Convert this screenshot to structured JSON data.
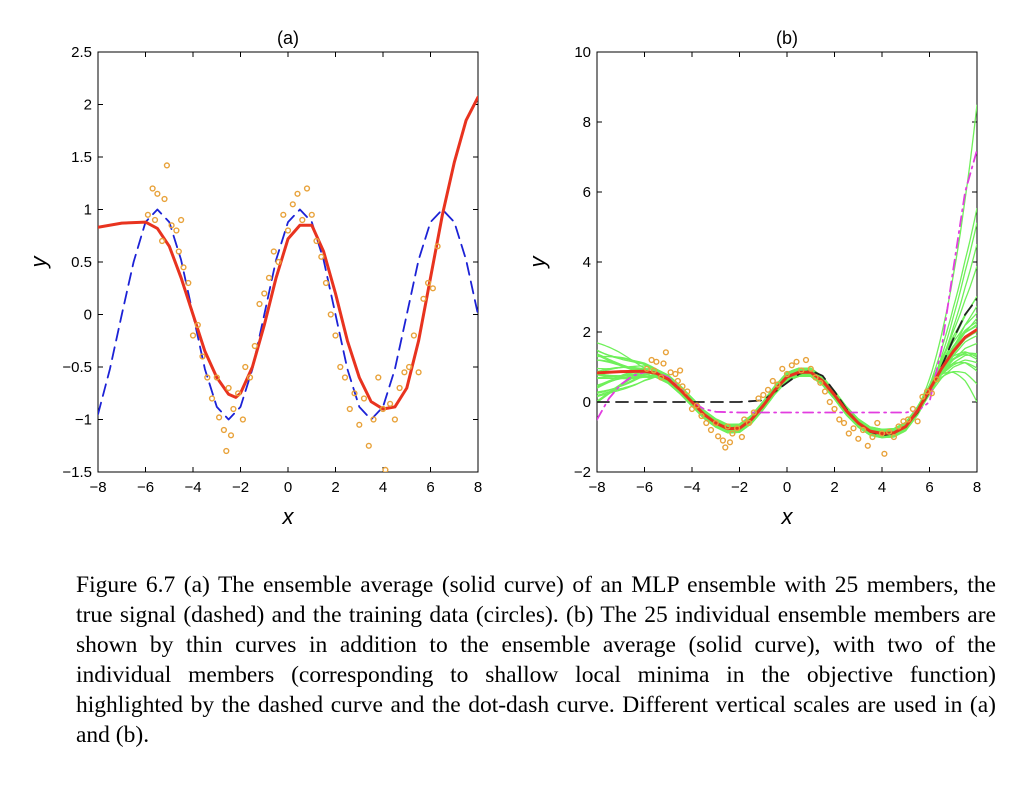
{
  "chart_data": [
    {
      "type": "line",
      "title": "(a)",
      "xlabel": "x",
      "ylabel": "y",
      "xlim": [
        -8,
        8
      ],
      "ylim": [
        -1.5,
        2.5
      ],
      "xticks": [
        -8,
        -6,
        -4,
        -2,
        0,
        2,
        4,
        6,
        8
      ],
      "yticks": [
        -1.5,
        -1,
        -0.5,
        0,
        0.5,
        1,
        1.5,
        2,
        2.5
      ],
      "xtick_labels": [
        "−8",
        "−6",
        "−4",
        "−2",
        "0",
        "2",
        "4",
        "6",
        "8"
      ],
      "ytick_labels": [
        "−1.5",
        "−1",
        "−0.5",
        "0",
        "0.5",
        "1",
        "1.5",
        "2",
        "2.5"
      ],
      "colors": {
        "ensemble": "#e8331f",
        "true_signal": "#1c22d6",
        "data": "#e8a23a"
      },
      "series": [
        {
          "style": "solid",
          "color": "#e8331f",
          "x": [
            -8,
            -7,
            -6,
            -5.5,
            -5,
            -4.5,
            -4,
            -3.5,
            -3,
            -2.5,
            -2.2,
            -2,
            -1.5,
            -1,
            -0.5,
            0,
            0.5,
            1,
            1.5,
            2,
            2.5,
            3,
            3.5,
            4,
            4.5,
            5,
            5.5,
            6,
            6.5,
            7,
            7.5,
            8
          ],
          "y": [
            0.83,
            0.87,
            0.88,
            0.82,
            0.65,
            0.35,
            0.0,
            -0.35,
            -0.6,
            -0.76,
            -0.79,
            -0.75,
            -0.5,
            -0.1,
            0.35,
            0.72,
            0.85,
            0.85,
            0.6,
            0.2,
            -0.25,
            -0.6,
            -0.83,
            -0.9,
            -0.88,
            -0.7,
            -0.25,
            0.35,
            0.95,
            1.45,
            1.85,
            2.07
          ]
        },
        {
          "style": "dashed",
          "color": "#1c22d6",
          "x": [
            -8,
            -7.5,
            -7,
            -6.5,
            -6,
            -5.5,
            -5,
            -4.5,
            -4,
            -3.5,
            -3,
            -2.5,
            -2,
            -1.5,
            -1,
            -0.5,
            0,
            0.5,
            1,
            1.5,
            2,
            2.5,
            3,
            3.5,
            4,
            4.5,
            5,
            5.5,
            6,
            6.5,
            7,
            7.5,
            8
          ],
          "y": [
            -0.95,
            -0.52,
            0.0,
            0.5,
            0.88,
            1.0,
            0.88,
            0.52,
            0.0,
            -0.52,
            -0.88,
            -1.0,
            -0.88,
            -0.52,
            0.0,
            0.52,
            0.88,
            1.0,
            0.88,
            0.52,
            0.0,
            -0.52,
            -0.88,
            -1.0,
            -0.88,
            -0.52,
            0.0,
            0.52,
            0.88,
            1.0,
            0.88,
            0.52,
            0.0
          ]
        }
      ],
      "scatter": {
        "color": "#e8a23a",
        "x": [
          -5.9,
          -5.7,
          -5.6,
          -5.5,
          -5.3,
          -5.2,
          -5.1,
          -4.9,
          -4.7,
          -4.6,
          -4.5,
          -4.4,
          -4.2,
          -4.0,
          -3.8,
          -3.6,
          -3.4,
          -3.2,
          -3.0,
          -2.9,
          -2.7,
          -2.6,
          -2.5,
          -2.4,
          -2.3,
          -2.1,
          -1.9,
          -1.8,
          -1.6,
          -1.4,
          -1.2,
          -1.0,
          -0.8,
          -0.6,
          -0.4,
          -0.2,
          0.0,
          0.2,
          0.4,
          0.6,
          0.8,
          1.0,
          1.2,
          1.4,
          1.6,
          1.8,
          2.0,
          2.2,
          2.4,
          2.6,
          2.8,
          3.0,
          3.2,
          3.4,
          3.6,
          3.8,
          4.0,
          4.1,
          4.3,
          4.5,
          4.7,
          4.9,
          5.1,
          5.3,
          5.5,
          5.7,
          5.9,
          6.1,
          6.3
        ],
        "y": [
          0.95,
          1.2,
          0.9,
          1.15,
          0.7,
          1.1,
          1.42,
          0.85,
          0.8,
          0.6,
          0.9,
          0.45,
          0.3,
          -0.2,
          -0.1,
          -0.4,
          -0.6,
          -0.8,
          -0.6,
          -0.98,
          -1.1,
          -1.3,
          -0.7,
          -1.15,
          -0.9,
          -0.75,
          -1.0,
          -0.5,
          -0.6,
          -0.3,
          0.1,
          0.2,
          0.35,
          0.6,
          0.5,
          0.95,
          0.8,
          1.05,
          1.15,
          0.9,
          1.2,
          0.95,
          0.7,
          0.55,
          0.3,
          0.0,
          -0.2,
          -0.5,
          -0.6,
          -0.9,
          -0.75,
          -1.05,
          -0.8,
          -1.25,
          -1.0,
          -0.6,
          -0.9,
          -1.48,
          -0.85,
          -1.0,
          -0.7,
          -0.55,
          -0.5,
          -0.2,
          -0.55,
          0.15,
          0.3,
          0.25,
          0.65
        ]
      }
    },
    {
      "type": "line",
      "title": "(b)",
      "xlabel": "x",
      "ylabel": "y",
      "xlim": [
        -8,
        8
      ],
      "ylim": [
        -2,
        10
      ],
      "xticks": [
        -8,
        -6,
        -4,
        -2,
        0,
        2,
        4,
        6,
        8
      ],
      "yticks": [
        -2,
        0,
        2,
        4,
        6,
        8,
        10
      ],
      "xtick_labels": [
        "−8",
        "−6",
        "−4",
        "−2",
        "0",
        "2",
        "4",
        "6",
        "8"
      ],
      "ytick_labels": [
        "−2",
        "0",
        "2",
        "4",
        "6",
        "8",
        "10"
      ],
      "colors": {
        "ensemble": "#e8331f",
        "members": "#6ff05a",
        "dashed_member": "#222222",
        "dotdash_member": "#e23de0",
        "data": "#e8a23a"
      },
      "members_end_values_at_x8": [
        0.1,
        0.6,
        0.9,
        1.1,
        1.3,
        1.5,
        1.7,
        1.9,
        2.1,
        2.3,
        2.5,
        2.7,
        2.9,
        3.0,
        1.0,
        1.4,
        1.8,
        2.2,
        2.6,
        4.0,
        4.5,
        5.0,
        5.5,
        8.6,
        1.2
      ],
      "series": [
        {
          "style": "solid",
          "color": "#e8331f",
          "x": [
            -8,
            -7,
            -6,
            -5.5,
            -5,
            -4.5,
            -4,
            -3.5,
            -3,
            -2.5,
            -2,
            -1.5,
            -1,
            -0.5,
            0,
            0.5,
            1,
            1.5,
            2,
            2.5,
            3,
            3.5,
            4,
            4.5,
            5,
            5.5,
            6,
            6.5,
            7,
            7.5,
            8
          ],
          "y": [
            0.83,
            0.87,
            0.88,
            0.82,
            0.65,
            0.35,
            0.0,
            -0.35,
            -0.6,
            -0.76,
            -0.75,
            -0.5,
            -0.1,
            0.35,
            0.72,
            0.85,
            0.85,
            0.6,
            0.2,
            -0.25,
            -0.6,
            -0.83,
            -0.9,
            -0.88,
            -0.7,
            -0.25,
            0.35,
            0.95,
            1.45,
            1.85,
            2.07
          ]
        },
        {
          "style": "dashed",
          "color": "#222222",
          "x": [
            -8,
            -4,
            -3,
            -2,
            -1,
            0,
            0.5,
            1,
            1.5,
            2,
            2.5,
            3,
            3.5,
            4,
            4.5,
            5,
            5.5,
            6,
            6.5,
            7,
            7.5,
            8
          ],
          "y": [
            0.0,
            0.0,
            0.0,
            0.0,
            0.05,
            0.55,
            0.8,
            0.9,
            0.75,
            0.3,
            -0.2,
            -0.6,
            -0.85,
            -0.95,
            -0.9,
            -0.7,
            -0.3,
            0.3,
            1.0,
            1.8,
            2.5,
            2.95
          ]
        },
        {
          "style": "dashdot",
          "color": "#e23de0",
          "x": [
            -8,
            -7.5,
            -7,
            -6.5,
            -6,
            -5.5,
            -5,
            -4.5,
            -4,
            -3.5,
            -3,
            -2,
            0,
            2,
            4,
            5,
            5.5,
            6,
            6.5,
            7,
            7.5,
            8
          ],
          "y": [
            -0.5,
            0.1,
            0.5,
            0.75,
            0.85,
            0.85,
            0.7,
            0.4,
            0.0,
            -0.2,
            -0.28,
            -0.3,
            -0.3,
            -0.3,
            -0.3,
            -0.3,
            -0.25,
            0.0,
            1.5,
            3.8,
            6.0,
            7.2
          ]
        }
      ],
      "scatter": {
        "color": "#e8a23a",
        "x": [
          -5.9,
          -5.7,
          -5.6,
          -5.5,
          -5.3,
          -5.2,
          -5.1,
          -4.9,
          -4.7,
          -4.6,
          -4.5,
          -4.4,
          -4.2,
          -4.0,
          -3.8,
          -3.6,
          -3.4,
          -3.2,
          -3.0,
          -2.9,
          -2.7,
          -2.6,
          -2.5,
          -2.4,
          -2.3,
          -2.1,
          -1.9,
          -1.8,
          -1.6,
          -1.4,
          -1.2,
          -1.0,
          -0.8,
          -0.6,
          -0.4,
          -0.2,
          0.0,
          0.2,
          0.4,
          0.6,
          0.8,
          1.0,
          1.2,
          1.4,
          1.6,
          1.8,
          2.0,
          2.2,
          2.4,
          2.6,
          2.8,
          3.0,
          3.2,
          3.4,
          3.6,
          3.8,
          4.0,
          4.1,
          4.3,
          4.5,
          4.7,
          4.9,
          5.1,
          5.3,
          5.5,
          5.7,
          5.9,
          6.1,
          6.3
        ],
        "y": [
          0.95,
          1.2,
          0.9,
          1.15,
          0.7,
          1.1,
          1.42,
          0.85,
          0.8,
          0.6,
          0.9,
          0.45,
          0.3,
          -0.2,
          -0.1,
          -0.4,
          -0.6,
          -0.8,
          -0.6,
          -0.98,
          -1.1,
          -1.3,
          -0.7,
          -1.15,
          -0.9,
          -0.75,
          -1.0,
          -0.5,
          -0.6,
          -0.3,
          0.1,
          0.2,
          0.35,
          0.6,
          0.5,
          0.95,
          0.8,
          1.05,
          1.15,
          0.9,
          1.2,
          0.95,
          0.7,
          0.55,
          0.3,
          0.0,
          -0.2,
          -0.5,
          -0.6,
          -0.9,
          -0.75,
          -1.05,
          -0.8,
          -1.25,
          -1.0,
          -0.6,
          -0.9,
          -1.48,
          -0.85,
          -1.0,
          -0.7,
          -0.55,
          -0.5,
          -0.2,
          -0.55,
          0.15,
          0.3,
          0.25,
          0.65
        ]
      }
    }
  ],
  "caption": "Figure 6.7 (a) The ensemble average (solid curve) of an MLP ensemble with 25 members, the true signal (dashed) and the training data (circles). (b) The 25 individual ensemble members are shown by thin curves in addition to the ensemble average (solid curve), with two of the individual members (corresponding to shallow local minima in the objective function) highlighted by the dashed curve and the dot-dash curve. Different vertical scales are used in (a) and (b)."
}
